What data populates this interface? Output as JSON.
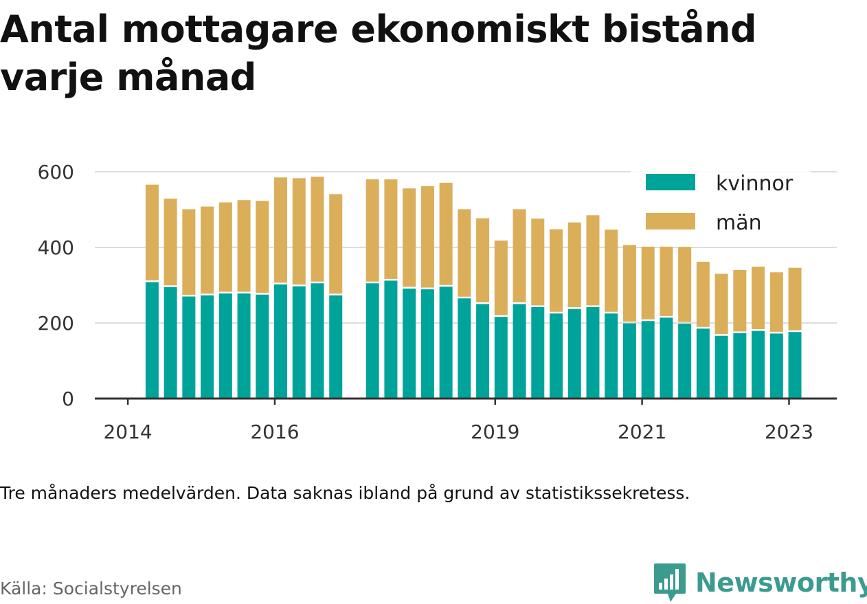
{
  "title": "Antal mottagare ekonomiskt bistånd varje månad",
  "note": "Tre månaders medelvärden. Data saknas ibland på grund av statistikssekretess.",
  "source": "Källa: Socialstyrelsen",
  "brand": {
    "name": "Newsworthy",
    "logo_icon": "bar-chart-speech-bubble-icon",
    "color": "#3b9b8f"
  },
  "chart_data": {
    "type": "bar",
    "stacked": true,
    "x_tick_labels": [
      "2014",
      "2016",
      "2019",
      "2021",
      "2023"
    ],
    "x_ticks_at": [
      2014,
      2016,
      2019,
      2021,
      2023
    ],
    "x_range": [
      2013.55,
      2023.65
    ],
    "y_ticks": [
      "0",
      "200",
      "400",
      "600"
    ],
    "ylim": [
      0,
      600
    ],
    "grid": true,
    "legend_position": "top-right",
    "colors": {
      "kvinnor": "#00a39a",
      "män": "#dbae5a",
      "background": "#ffffff",
      "grid": "#dddddd",
      "axis": "#333333"
    },
    "x": [
      2014.33,
      2014.58,
      2014.83,
      2015.08,
      2015.33,
      2015.58,
      2015.83,
      2016.08,
      2016.33,
      2016.58,
      2016.83,
      2017.33,
      2017.58,
      2017.83,
      2018.08,
      2018.33,
      2018.58,
      2018.83,
      2019.08,
      2019.33,
      2019.58,
      2019.83,
      2020.08,
      2020.33,
      2020.58,
      2020.83,
      2021.08,
      2021.33,
      2021.58,
      2021.83,
      2022.08,
      2022.33,
      2022.58,
      2022.83,
      2023.08
    ],
    "series": [
      {
        "name": "kvinnor",
        "values": [
          308,
          295,
          270,
          273,
          278,
          278,
          275,
          302,
          297,
          305,
          273,
          305,
          312,
          291,
          289,
          296,
          265,
          250,
          216,
          250,
          242,
          225,
          237,
          242,
          225,
          199,
          205,
          214,
          198,
          185,
          166,
          173,
          179,
          172,
          176
        ]
      },
      {
        "name": "män",
        "values": [
          258,
          234,
          231,
          235,
          241,
          247,
          248,
          283,
          286,
          282,
          268,
          275,
          268,
          265,
          273,
          275,
          236,
          227,
          202,
          251,
          234,
          223,
          229,
          243,
          222,
          207,
          197,
          188,
          203,
          177,
          164,
          167,
          170,
          162,
          170
        ]
      }
    ]
  }
}
